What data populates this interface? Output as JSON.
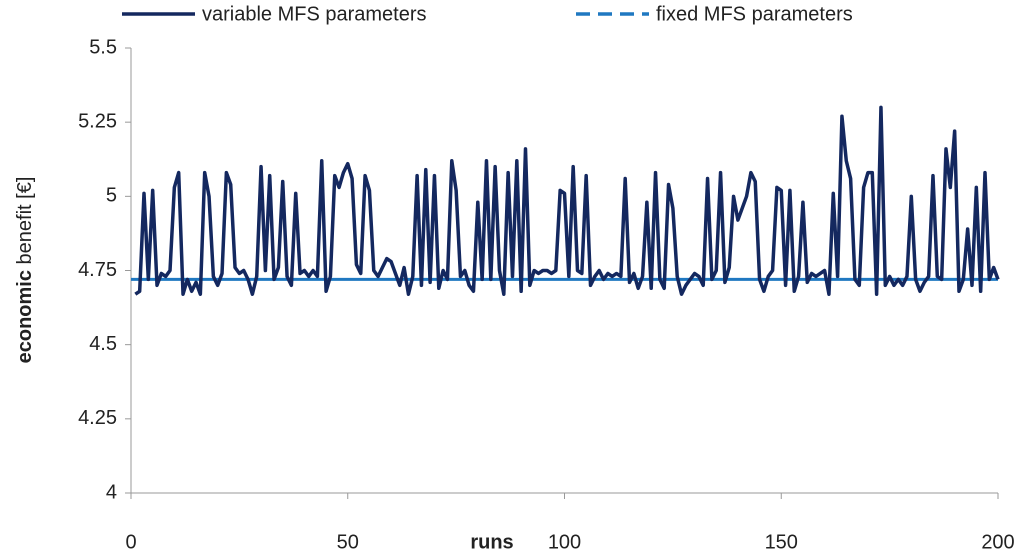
{
  "chart_data": {
    "type": "line",
    "ylabel_parts": [
      "economic",
      "benefit [€]"
    ],
    "xlabel": "runs",
    "xlim": [
      0,
      200
    ],
    "xticks": [
      0,
      50,
      100,
      150,
      200
    ],
    "ylim": [
      4,
      5.5
    ],
    "yticks": [
      4,
      4.25,
      4.5,
      4.75,
      5,
      5.25,
      5.5
    ],
    "grid": false,
    "legend": "top",
    "series": [
      {
        "name": "variable MFS parameters",
        "color": "#14285f",
        "style": "solid",
        "x": [
          1,
          2,
          3,
          4,
          5,
          6,
          7,
          8,
          9,
          10,
          11,
          12,
          13,
          14,
          15,
          16,
          17,
          18,
          19,
          20,
          21,
          22,
          23,
          24,
          25,
          26,
          27,
          28,
          29,
          30,
          31,
          32,
          33,
          34,
          35,
          36,
          37,
          38,
          39,
          40,
          41,
          42,
          43,
          44,
          45,
          46,
          47,
          48,
          49,
          50,
          51,
          52,
          53,
          54,
          55,
          56,
          57,
          58,
          59,
          60,
          61,
          62,
          63,
          64,
          65,
          66,
          67,
          68,
          69,
          70,
          71,
          72,
          73,
          74,
          75,
          76,
          77,
          78,
          79,
          80,
          81,
          82,
          83,
          84,
          85,
          86,
          87,
          88,
          89,
          90,
          91,
          92,
          93,
          94,
          95,
          96,
          97,
          98,
          99,
          100,
          101,
          102,
          103,
          104,
          105,
          106,
          107,
          108,
          109,
          110,
          111,
          112,
          113,
          114,
          115,
          116,
          117,
          118,
          119,
          120,
          121,
          122,
          123,
          124,
          125,
          126,
          127,
          128,
          129,
          130,
          131,
          132,
          133,
          134,
          135,
          136,
          137,
          138,
          139,
          140,
          141,
          142,
          143,
          144,
          145,
          146,
          147,
          148,
          149,
          150,
          151,
          152,
          153,
          154,
          155,
          156,
          157,
          158,
          159,
          160,
          161,
          162,
          163,
          164,
          165,
          166,
          167,
          168,
          169,
          170,
          171,
          172,
          173,
          174,
          175,
          176,
          177,
          178,
          179,
          180,
          181,
          182,
          183,
          184,
          185,
          186,
          187,
          188,
          189,
          190,
          191,
          192,
          193,
          194,
          195,
          196,
          197,
          198,
          199,
          200
        ],
        "values": [
          4.67,
          4.68,
          5.01,
          4.72,
          5.02,
          4.7,
          4.74,
          4.73,
          4.75,
          5.03,
          5.08,
          4.67,
          4.72,
          4.68,
          4.71,
          4.67,
          5.08,
          5.0,
          4.73,
          4.7,
          4.74,
          5.08,
          5.04,
          4.76,
          4.74,
          4.75,
          4.72,
          4.67,
          4.73,
          5.1,
          4.75,
          5.07,
          4.72,
          4.76,
          5.05,
          4.73,
          4.7,
          5.01,
          4.74,
          4.75,
          4.73,
          4.75,
          4.73,
          5.12,
          4.68,
          4.73,
          5.07,
          5.03,
          5.08,
          5.11,
          5.06,
          4.77,
          4.74,
          5.07,
          5.02,
          4.75,
          4.73,
          4.76,
          4.79,
          4.78,
          4.74,
          4.7,
          4.76,
          4.67,
          4.73,
          5.07,
          4.7,
          5.09,
          4.71,
          5.07,
          4.69,
          4.75,
          4.72,
          5.12,
          5.02,
          4.73,
          4.75,
          4.7,
          4.68,
          4.98,
          4.72,
          5.12,
          4.72,
          5.1,
          4.75,
          4.67,
          5.08,
          4.73,
          5.12,
          4.68,
          5.16,
          4.7,
          4.75,
          4.74,
          4.75,
          4.75,
          4.74,
          4.75,
          5.02,
          5.01,
          4.73,
          5.1,
          4.75,
          4.74,
          5.07,
          4.7,
          4.73,
          4.75,
          4.72,
          4.74,
          4.73,
          4.74,
          4.73,
          5.06,
          4.71,
          4.74,
          4.69,
          4.73,
          4.98,
          4.69,
          5.08,
          4.72,
          4.69,
          5.04,
          4.96,
          4.73,
          4.67,
          4.7,
          4.72,
          4.74,
          4.73,
          4.7,
          5.06,
          4.72,
          4.75,
          5.08,
          4.71,
          4.76,
          5.0,
          4.92,
          4.96,
          5.0,
          5.08,
          5.05,
          4.72,
          4.68,
          4.73,
          4.75,
          5.03,
          5.02,
          4.7,
          5.02,
          4.68,
          4.73,
          4.98,
          4.71,
          4.74,
          4.73,
          4.74,
          4.75,
          4.67,
          5.01,
          4.73,
          5.27,
          5.12,
          5.06,
          4.72,
          4.7,
          5.03,
          5.08,
          5.08,
          4.67,
          5.3,
          4.7,
          4.73,
          4.7,
          4.72,
          4.7,
          4.73,
          5.0,
          4.72,
          4.68,
          4.71,
          4.73,
          5.07,
          4.73,
          4.72,
          5.16,
          5.03,
          5.22,
          4.68,
          4.72,
          4.89,
          4.7,
          5.03,
          4.68,
          5.08,
          4.72,
          4.76,
          4.72
        ]
      },
      {
        "name": "fixed MFS parameters",
        "color": "#1f78c1",
        "style": "dashed",
        "x": [
          0,
          200
        ],
        "values": [
          4.72,
          4.72
        ]
      }
    ]
  }
}
